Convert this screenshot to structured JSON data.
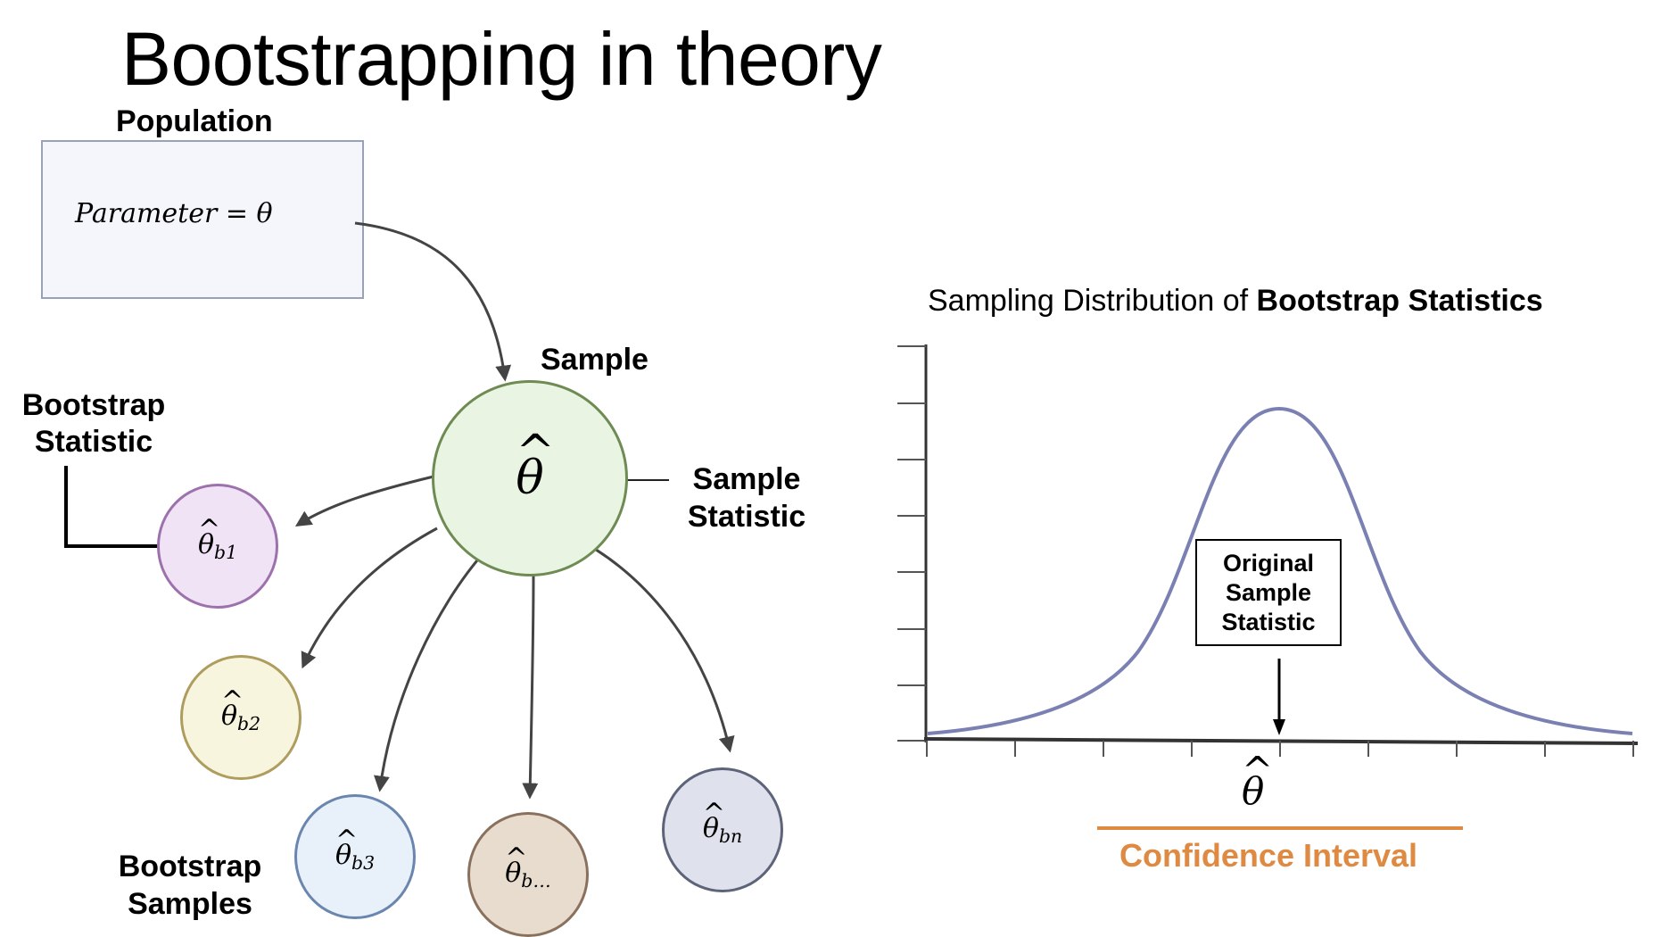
{
  "title": "Bootstrapping in theory",
  "population": {
    "label": "Population",
    "parameter_text": "Parameter = θ"
  },
  "sample": {
    "label": "Sample",
    "symbol": "θ"
  },
  "labels": {
    "bootstrap_statistic": [
      "Bootstrap",
      "Statistic"
    ],
    "sample_statistic": [
      "Sample",
      "Statistic"
    ],
    "bootstrap_samples": [
      "Bootstrap",
      "Samples"
    ]
  },
  "bootstrap_circles": [
    {
      "symbol": "θ",
      "sub": "b1",
      "fill": "#f1e3f6",
      "stroke": "#9d72ac"
    },
    {
      "symbol": "θ",
      "sub": "b2",
      "fill": "#f8f5de",
      "stroke": "#ae9d5f"
    },
    {
      "symbol": "θ",
      "sub": "b3",
      "fill": "#e8f0fa",
      "stroke": "#6a86ae"
    },
    {
      "symbol": "θ",
      "sub": "b…",
      "fill": "#e8dccf",
      "stroke": "#8a715e"
    },
    {
      "symbol": "θ",
      "sub": "bn",
      "fill": "#dfe1ec",
      "stroke": "#5d6479"
    }
  ],
  "sample_circle_colors": {
    "fill": "#e9f5e2",
    "stroke": "#6d8b52"
  },
  "chart": {
    "title_regular": "Sampling Distribution of ",
    "title_bold": "Bootstrap Statistics",
    "curve_color": "#7b80b3",
    "box_lines": [
      "Original",
      "Sample",
      "Statistic"
    ],
    "axis_symbol": "θ",
    "confidence_interval_label": "Confidence Interval",
    "ci_color": "#df8a43"
  }
}
